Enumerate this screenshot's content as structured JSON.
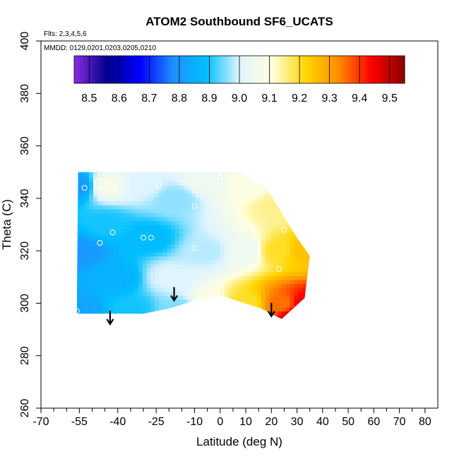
{
  "chart_data": {
    "type": "heatmap",
    "title": "ATOM2 Southbound SF6_UCATS",
    "subtitle_lines": [
      "Flts: 2,3,4,5,6",
      "MMDD: 0129,0201,0203,0205,0210"
    ],
    "xlabel": "Latitude (deg N)",
    "ylabel": "Theta (C)",
    "xlim": [
      -70,
      85
    ],
    "ylim": [
      260,
      400
    ],
    "x_ticks": [
      "-70",
      "-55",
      "-40",
      "-25",
      "-10",
      "0",
      "10",
      "20",
      "30",
      "40",
      "50",
      "60",
      "70",
      "80"
    ],
    "x_tick_values": [
      -70,
      -55,
      -40,
      -25,
      -10,
      0,
      10,
      20,
      30,
      40,
      50,
      60,
      70,
      80
    ],
    "y_ticks": [
      "260",
      "280",
      "300",
      "320",
      "340",
      "360",
      "380",
      "400"
    ],
    "y_tick_values": [
      260,
      280,
      300,
      320,
      340,
      360,
      380,
      400
    ],
    "colorbar": {
      "range": [
        8.45,
        9.55
      ],
      "tick_labels": [
        "8.5",
        "8.6",
        "8.7",
        "8.8",
        "8.9",
        "9.0",
        "9.1",
        "9.2",
        "9.3",
        "9.4",
        "9.5"
      ],
      "tick_values": [
        8.5,
        8.6,
        8.7,
        8.8,
        8.9,
        9.0,
        9.1,
        9.2,
        9.3,
        9.4,
        9.5
      ],
      "colors": [
        "#8a2be2",
        "#00008b",
        "#0000ff",
        "#1e90ff",
        "#00bfff",
        "#e0f4ff",
        "#ffffe0",
        "#ffd700",
        "#ff8c00",
        "#ff0000",
        "#8b0000"
      ]
    },
    "field_points": [
      {
        "lat": -55,
        "theta": 345,
        "value": 8.8
      },
      {
        "lat": -55,
        "theta": 320,
        "value": 8.8
      },
      {
        "lat": -55,
        "theta": 298,
        "value": 8.83
      },
      {
        "lat": -45,
        "theta": 345,
        "value": 9.08
      },
      {
        "lat": -45,
        "theta": 330,
        "value": 8.9
      },
      {
        "lat": -40,
        "theta": 310,
        "value": 8.86
      },
      {
        "lat": -35,
        "theta": 298,
        "value": 8.9
      },
      {
        "lat": -30,
        "theta": 345,
        "value": 9.0
      },
      {
        "lat": -28,
        "theta": 325,
        "value": 8.88
      },
      {
        "lat": -18,
        "theta": 340,
        "value": 8.96
      },
      {
        "lat": -20,
        "theta": 310,
        "value": 9.0
      },
      {
        "lat": -15,
        "theta": 298,
        "value": 8.95
      },
      {
        "lat": -5,
        "theta": 347,
        "value": 9.05
      },
      {
        "lat": -5,
        "theta": 320,
        "value": 8.98
      },
      {
        "lat": -5,
        "theta": 300,
        "value": 9.1
      },
      {
        "lat": 10,
        "theta": 345,
        "value": 9.1
      },
      {
        "lat": 10,
        "theta": 320,
        "value": 9.05
      },
      {
        "lat": 10,
        "theta": 300,
        "value": 9.2
      },
      {
        "lat": 22,
        "theta": 337,
        "value": 9.15
      },
      {
        "lat": 22,
        "theta": 320,
        "value": 9.2
      },
      {
        "lat": 24,
        "theta": 300,
        "value": 9.35
      },
      {
        "lat": 33,
        "theta": 320,
        "value": 9.25
      },
      {
        "lat": 33,
        "theta": 300,
        "value": 9.45
      },
      {
        "lat": 30,
        "theta": 295,
        "value": 9.5
      }
    ],
    "field_outline": [
      {
        "lat": -55.5,
        "theta": 350
      },
      {
        "lat": 8,
        "theta": 350
      },
      {
        "lat": 18,
        "theta": 344
      },
      {
        "lat": 30,
        "theta": 325
      },
      {
        "lat": 35,
        "theta": 318
      },
      {
        "lat": 33,
        "theta": 302
      },
      {
        "lat": 24,
        "theta": 294
      },
      {
        "lat": 16,
        "theta": 298
      },
      {
        "lat": 0,
        "theta": 303
      },
      {
        "lat": -10,
        "theta": 301
      },
      {
        "lat": -20,
        "theta": 298
      },
      {
        "lat": -30,
        "theta": 296
      },
      {
        "lat": -56,
        "theta": 296
      }
    ],
    "observation_points": [
      {
        "lat": -53,
        "theta": 344
      },
      {
        "lat": -44,
        "theta": 345
      },
      {
        "lat": -42,
        "theta": 327
      },
      {
        "lat": -47,
        "theta": 323
      },
      {
        "lat": -30,
        "theta": 325
      },
      {
        "lat": -27,
        "theta": 325
      },
      {
        "lat": -24,
        "theta": 345
      },
      {
        "lat": -10,
        "theta": 337
      },
      {
        "lat": -10,
        "theta": 321
      },
      {
        "lat": -5,
        "theta": 348
      },
      {
        "lat": 0,
        "theta": 348
      },
      {
        "lat": 10,
        "theta": 348
      },
      {
        "lat": 23,
        "theta": 313
      },
      {
        "lat": 25,
        "theta": 328
      },
      {
        "lat": -56,
        "theta": 297
      }
    ],
    "arrows": [
      {
        "lat": -43,
        "theta": 295
      },
      {
        "lat": -18,
        "theta": 304
      },
      {
        "lat": 20,
        "theta": 298
      }
    ]
  }
}
